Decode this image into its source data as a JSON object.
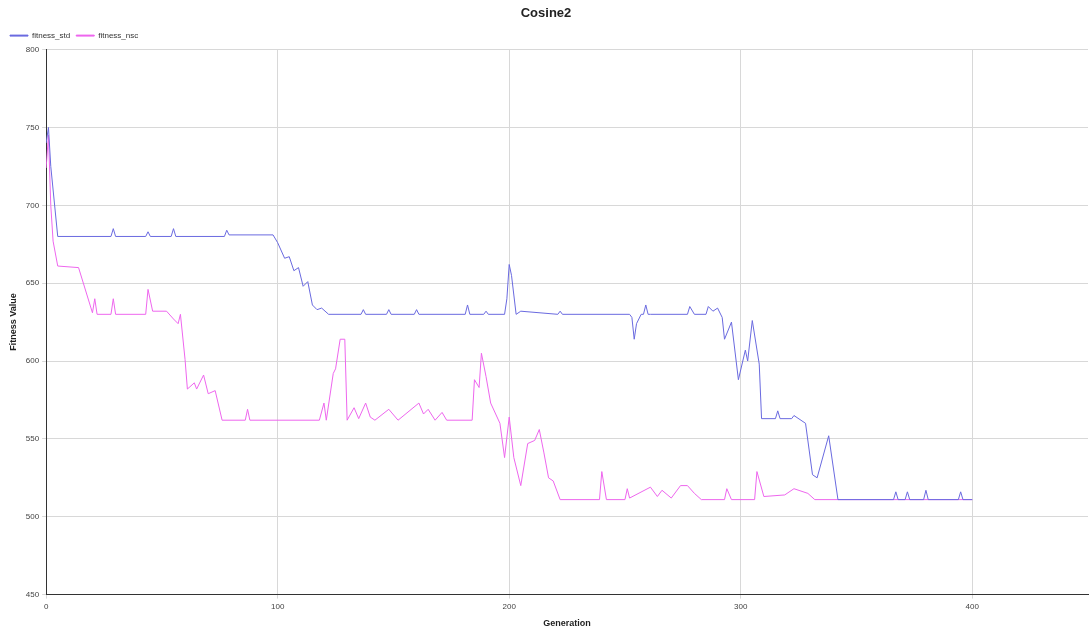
{
  "chart_data": {
    "type": "line",
    "title": "Cosine2",
    "xlabel": "Generation",
    "ylabel": "Fitness Value",
    "xlim": [
      0,
      450
    ],
    "xticks": [
      0,
      100,
      200,
      300,
      400
    ],
    "ylim": [
      450,
      800
    ],
    "yticks": [
      450,
      500,
      550,
      600,
      650,
      700,
      750,
      800
    ],
    "grid": true,
    "legend": "top left",
    "marker": "none",
    "line_style": "solid",
    "series": [
      {
        "name": "fitness_std",
        "color": "#6a6ae0",
        "x": [
          0,
          1,
          2,
          5,
          28,
          29,
          30,
          43,
          44,
          45,
          54,
          55,
          56,
          77,
          78,
          79,
          98,
          100,
          103,
          105,
          107,
          109,
          111,
          113,
          115,
          117,
          119,
          122,
          136,
          137,
          138,
          147,
          148,
          149,
          159,
          160,
          161,
          181,
          182,
          183,
          189,
          190,
          191,
          198,
          199,
          200,
          201,
          203,
          205,
          221,
          222,
          223,
          252,
          253,
          254,
          255,
          257,
          258,
          259,
          260,
          261,
          277,
          278,
          280,
          285,
          286,
          288,
          290,
          292,
          293,
          296,
          299,
          302,
          303,
          305,
          308,
          309,
          315,
          316,
          317,
          322,
          323,
          328,
          331,
          333,
          338,
          342,
          366,
          367,
          368,
          371,
          372,
          373,
          379,
          380,
          381,
          394,
          395,
          396,
          400
        ],
        "values": [
          740,
          750,
          725,
          680,
          680,
          685,
          680,
          680,
          683,
          680,
          680,
          685,
          680,
          680,
          684,
          681,
          681,
          676,
          666,
          667,
          658,
          660,
          648,
          651,
          636,
          633,
          634,
          630,
          630,
          633,
          630,
          630,
          633,
          630,
          630,
          633,
          630,
          630,
          636,
          630,
          630,
          632,
          630,
          630,
          640,
          662,
          655,
          630,
          632,
          630,
          632,
          630,
          630,
          628,
          614,
          624,
          630,
          630,
          636,
          630,
          630,
          630,
          635,
          630,
          630,
          635,
          632,
          634,
          628,
          614,
          625,
          588,
          607,
          600,
          626,
          598,
          563,
          563,
          568,
          563,
          563,
          565,
          560,
          527,
          525,
          552,
          511,
          511,
          516,
          511,
          511,
          516,
          511,
          511,
          517,
          511,
          511,
          516,
          511,
          511
        ]
      },
      {
        "name": "fitness_nsc",
        "color": "#ee66ee",
        "x": [
          0,
          1,
          2,
          3,
          5,
          14,
          20,
          21,
          22,
          28,
          29,
          30,
          43,
          44,
          46,
          52,
          55,
          57,
          58,
          60,
          61,
          64,
          65,
          68,
          70,
          73,
          76,
          86,
          87,
          88,
          118,
          120,
          121,
          124,
          125,
          127,
          129,
          130,
          133,
          135,
          138,
          140,
          142,
          148,
          152,
          161,
          163,
          165,
          168,
          171,
          173,
          184,
          185,
          187,
          188,
          190,
          192,
          196,
          198,
          200,
          202,
          205,
          208,
          211,
          213,
          215,
          217,
          219,
          222,
          239,
          240,
          242,
          250,
          251,
          252,
          261,
          264,
          266,
          270,
          274,
          277,
          280,
          283,
          293,
          294,
          296,
          306,
          307,
          310,
          319,
          323,
          329,
          332,
          400
        ],
        "values": [
          724,
          745,
          700,
          677,
          661,
          660,
          631,
          640,
          630,
          630,
          640,
          630,
          630,
          646,
          632,
          632,
          627,
          624,
          630,
          601,
          582,
          586,
          582,
          591,
          579,
          581,
          562,
          562,
          569,
          562,
          562,
          573,
          562,
          592,
          595,
          614,
          614,
          562,
          570,
          563,
          573,
          564,
          562,
          569,
          562,
          573,
          566,
          569,
          562,
          567,
          562,
          562,
          588,
          583,
          605,
          590,
          573,
          560,
          538,
          564,
          538,
          520,
          547,
          549,
          556,
          541,
          525,
          523,
          511,
          511,
          529,
          511,
          511,
          518,
          512,
          519,
          513,
          517,
          512,
          520,
          520,
          515,
          511,
          511,
          518,
          511,
          511,
          529,
          513,
          514,
          518,
          515,
          511,
          511
        ]
      }
    ]
  }
}
